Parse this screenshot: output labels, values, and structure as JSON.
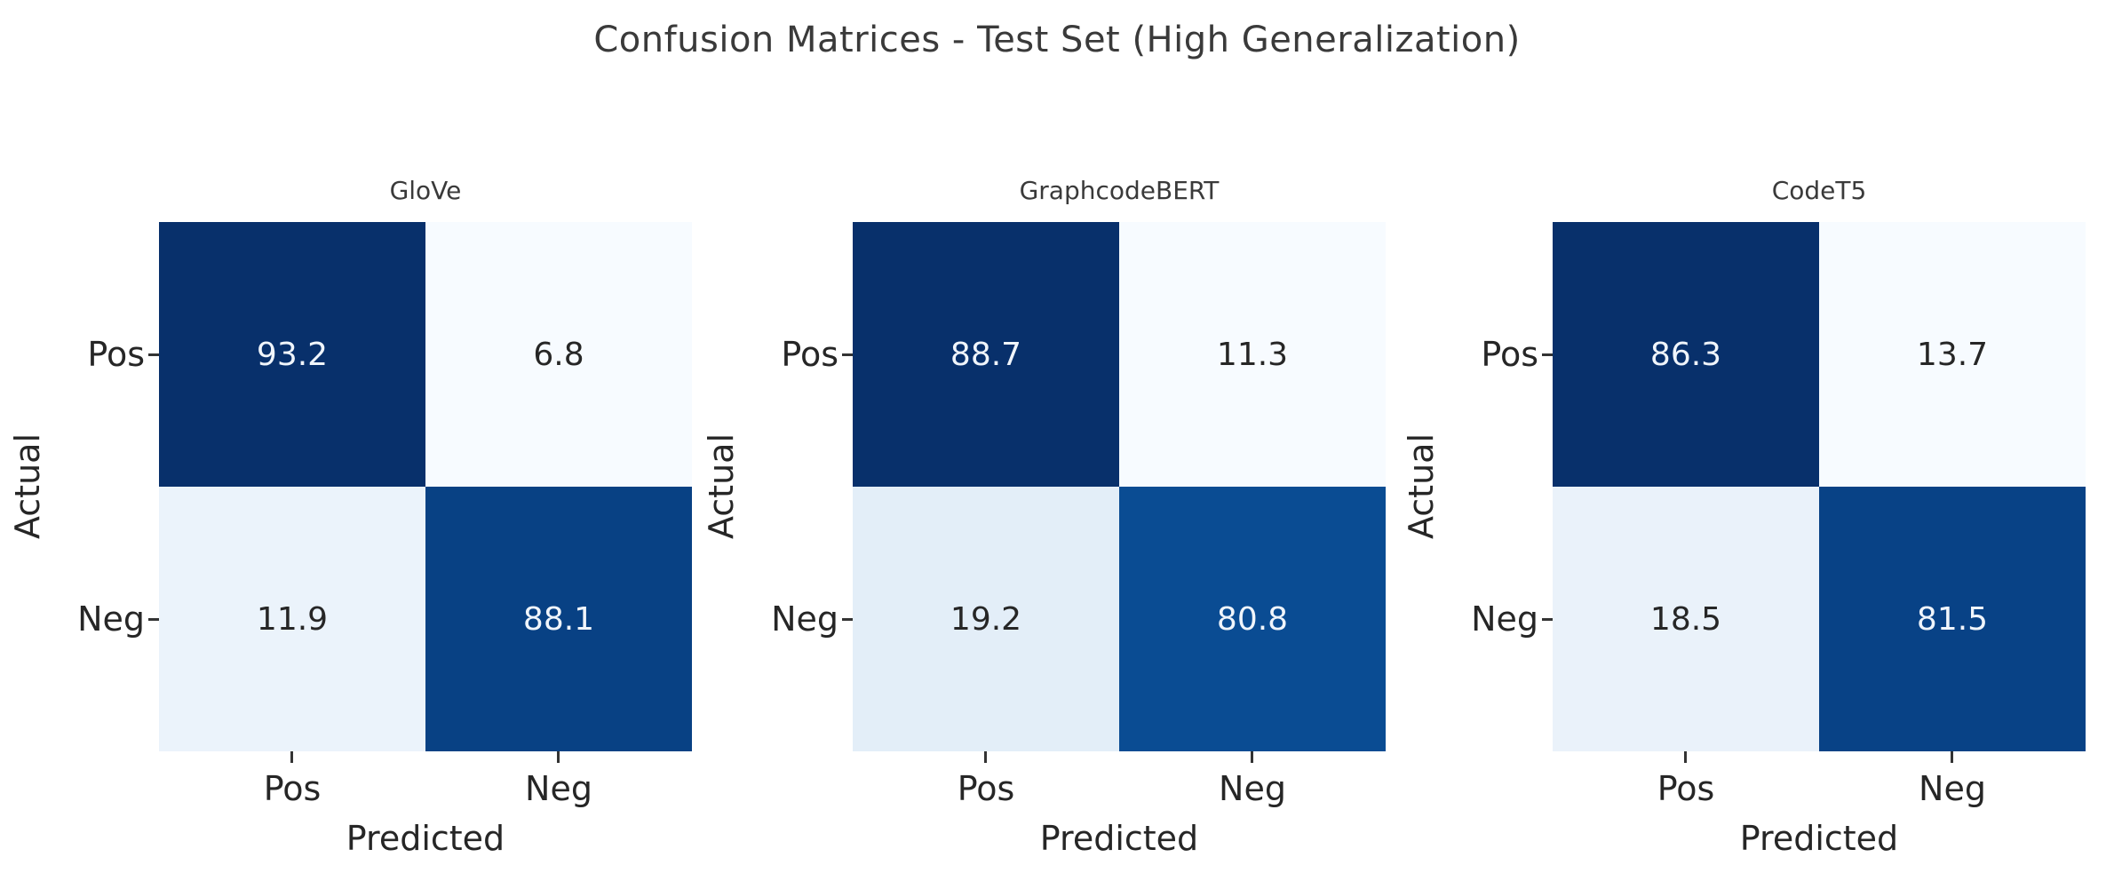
{
  "figure": {
    "title": "Confusion Matrices - Test Set (High Generalization)",
    "background_color": "#ffffff",
    "text_color": "#262626",
    "colormap": "Blues"
  },
  "chart_data": [
    {
      "type": "heatmap",
      "title": "GloVe",
      "xlabel": "Predicted",
      "ylabel": "Actual",
      "x_categories": [
        "Pos",
        "Neg"
      ],
      "y_categories": [
        "Pos",
        "Neg"
      ],
      "values": [
        [
          93.2,
          6.8
        ],
        [
          11.9,
          88.1
        ]
      ],
      "colormap": "Blues",
      "cell_colors": [
        [
          "#08306b",
          "#f7fbff"
        ],
        [
          "#ebf3fb",
          "#084184"
        ]
      ],
      "text_colors": [
        [
          "#f0f5fb",
          "#262626"
        ],
        [
          "#262626",
          "#f0f5fb"
        ]
      ]
    },
    {
      "type": "heatmap",
      "title": "GraphcodeBERT",
      "xlabel": "Predicted",
      "ylabel": "Actual",
      "x_categories": [
        "Pos",
        "Neg"
      ],
      "y_categories": [
        "Pos",
        "Neg"
      ],
      "values": [
        [
          88.7,
          11.3
        ],
        [
          19.2,
          80.8
        ]
      ],
      "colormap": "Blues",
      "cell_colors": [
        [
          "#08306b",
          "#f7fbff"
        ],
        [
          "#e3eef8",
          "#0a4c93"
        ]
      ],
      "text_colors": [
        [
          "#f0f5fb",
          "#262626"
        ],
        [
          "#262626",
          "#f0f5fb"
        ]
      ]
    },
    {
      "type": "heatmap",
      "title": "CodeT5",
      "xlabel": "Predicted",
      "ylabel": "Actual",
      "x_categories": [
        "Pos",
        "Neg"
      ],
      "y_categories": [
        "Pos",
        "Neg"
      ],
      "values": [
        [
          86.3,
          13.7
        ],
        [
          18.5,
          81.5
        ]
      ],
      "colormap": "Blues",
      "cell_colors": [
        [
          "#08306b",
          "#f7fbff"
        ],
        [
          "#eaf2fa",
          "#084286"
        ]
      ],
      "text_colors": [
        [
          "#f0f5fb",
          "#262626"
        ],
        [
          "#262626",
          "#f0f5fb"
        ]
      ]
    }
  ]
}
